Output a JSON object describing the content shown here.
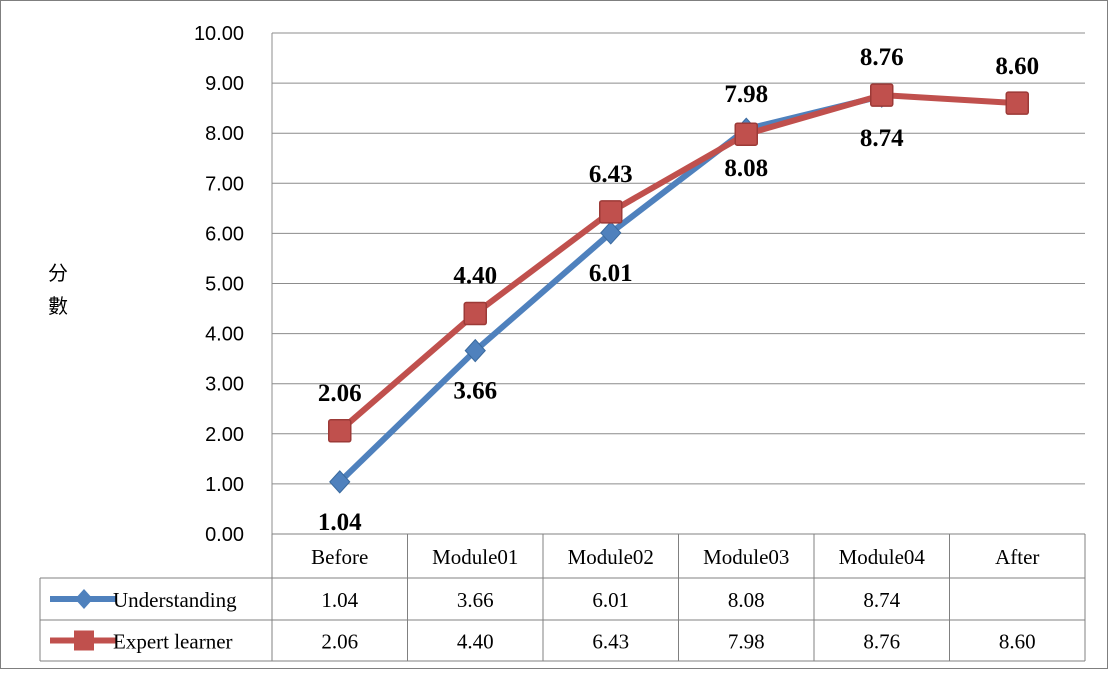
{
  "chart_data": {
    "type": "line",
    "title": "",
    "xlabel": "",
    "ylabel": "分數",
    "categories": [
      "Before",
      "Module01",
      "Module02",
      "Module03",
      "Module04",
      "After"
    ],
    "y_ticks": [
      "0.00",
      "1.00",
      "2.00",
      "3.00",
      "4.00",
      "5.00",
      "6.00",
      "7.00",
      "8.00",
      "9.00",
      "10.00"
    ],
    "ylim": [
      0,
      10
    ],
    "grid": true,
    "legend_placement": "bottom data table",
    "series": [
      {
        "name": "Understanding",
        "color": "#4F81BD",
        "marker": "diamond",
        "values": [
          1.04,
          3.66,
          6.01,
          8.08,
          8.74,
          null
        ],
        "labels": [
          "1.04",
          "3.66",
          "6.01",
          "8.08",
          "8.74",
          ""
        ]
      },
      {
        "name": "Expert learner",
        "color": "#C0504D",
        "marker": "square",
        "values": [
          2.06,
          4.4,
          6.43,
          7.98,
          8.76,
          8.6
        ],
        "labels": [
          "2.06",
          "4.40",
          "6.43",
          "7.98",
          "8.76",
          "8.60"
        ]
      }
    ]
  }
}
